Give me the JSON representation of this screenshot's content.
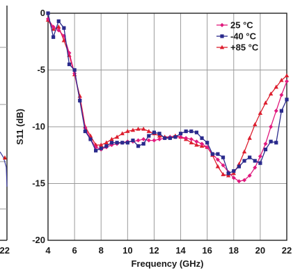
{
  "chart_data": {
    "type": "line",
    "xlabel": "Frequency (GHz)",
    "ylabel": "S11 (dB)",
    "xlim": [
      4,
      22
    ],
    "ylim": [
      -20,
      0
    ],
    "xticks": [
      "4",
      "6",
      "8",
      "10",
      "12",
      "14",
      "16",
      "18",
      "20",
      "22"
    ],
    "yticks": [
      "0",
      "-5",
      "-10",
      "-15",
      "-20"
    ],
    "grid": true,
    "legend_placement": "top-right",
    "left_partial_panel": {
      "tick_label": "22",
      "line_color": "#3a3aa0",
      "marker_color": "#cc1a1a"
    },
    "series": [
      {
        "name": "25 °C",
        "color": "#e0197d",
        "marker": "diamond",
        "x": [
          4,
          4.4,
          4.8,
          5.2,
          5.6,
          6.0,
          6.4,
          6.8,
          7.2,
          7.6,
          8.0,
          8.4,
          8.8,
          9.2,
          9.6,
          10.0,
          10.4,
          10.8,
          11.2,
          11.6,
          12.0,
          12.4,
          12.8,
          13.2,
          13.6,
          14.0,
          14.4,
          14.8,
          15.2,
          15.6,
          16.0,
          16.4,
          16.8,
          17.2,
          17.6,
          18.0,
          18.4,
          18.8,
          19.2,
          19.6,
          20.0,
          20.4,
          20.8,
          21.2,
          21.6,
          22.0
        ],
        "values": [
          -0.5,
          -1.2,
          -1.5,
          -2.0,
          -3.5,
          -5.3,
          -7.6,
          -10.1,
          -11.1,
          -11.8,
          -12.0,
          -11.8,
          -11.6,
          -11.5,
          -11.4,
          -11.3,
          -11.3,
          -11.2,
          -11.1,
          -11.2,
          -11.2,
          -11.1,
          -11.0,
          -10.9,
          -10.9,
          -10.9,
          -11.0,
          -11.1,
          -11.3,
          -11.5,
          -11.8,
          -12.4,
          -12.9,
          -13.4,
          -14.0,
          -14.5,
          -14.8,
          -14.7,
          -14.3,
          -13.6,
          -12.6,
          -11.5,
          -10.0,
          -8.6,
          -7.2,
          -6.0
        ]
      },
      {
        "name": "-40 °C",
        "color": "#2a2a8c",
        "marker": "square",
        "x": [
          4,
          4.4,
          4.8,
          5.2,
          5.6,
          6.0,
          6.4,
          6.8,
          7.2,
          7.6,
          8.0,
          8.4,
          8.8,
          9.2,
          9.6,
          10.0,
          10.4,
          10.8,
          11.2,
          11.6,
          12.0,
          12.4,
          12.8,
          13.2,
          13.6,
          14.0,
          14.4,
          14.8,
          15.2,
          15.6,
          16.0,
          16.4,
          16.8,
          17.2,
          17.6,
          18.0,
          18.4,
          18.8,
          19.2,
          19.6,
          20.0,
          20.4,
          20.8,
          21.2,
          21.6,
          22.0
        ],
        "values": [
          0.0,
          -2.1,
          -0.7,
          -1.3,
          -4.5,
          -5.0,
          -7.7,
          -10.4,
          -11.1,
          -12.1,
          -11.9,
          -11.7,
          -11.4,
          -11.4,
          -11.4,
          -11.4,
          -11.2,
          -11.7,
          -11.5,
          -10.8,
          -10.5,
          -10.6,
          -11.0,
          -11.0,
          -10.9,
          -10.6,
          -10.4,
          -10.4,
          -10.5,
          -11.0,
          -11.4,
          -12.4,
          -12.4,
          -12.7,
          -14.1,
          -13.9,
          -13.5,
          -13.0,
          -12.7,
          -13.0,
          -13.2,
          -12.0,
          -11.3,
          -11.4,
          -8.6,
          -7.6
        ]
      },
      {
        "name": "+85 °C",
        "color": "#dd1e2e",
        "marker": "triangle",
        "x": [
          4,
          4.4,
          4.8,
          5.2,
          5.6,
          6.0,
          6.4,
          6.8,
          7.2,
          7.6,
          8.0,
          8.4,
          8.8,
          9.2,
          9.6,
          10.0,
          10.4,
          10.8,
          11.2,
          11.6,
          12.0,
          12.4,
          12.8,
          13.2,
          13.6,
          14.0,
          14.4,
          14.8,
          15.2,
          15.6,
          16.0,
          16.4,
          16.8,
          17.2,
          17.6,
          18.0,
          18.4,
          18.8,
          19.2,
          19.6,
          20.0,
          20.4,
          20.8,
          21.2,
          21.6,
          22.0
        ],
        "values": [
          -0.6,
          -1.4,
          -1.2,
          -2.4,
          -3.7,
          -5.4,
          -7.3,
          -10.0,
          -10.8,
          -11.6,
          -11.6,
          -11.4,
          -11.1,
          -10.9,
          -10.6,
          -10.4,
          -10.3,
          -10.2,
          -10.2,
          -10.4,
          -10.6,
          -10.8,
          -10.9,
          -10.9,
          -10.8,
          -10.9,
          -11.1,
          -11.4,
          -11.6,
          -11.7,
          -11.8,
          -12.5,
          -13.5,
          -14.2,
          -14.3,
          -14.1,
          -13.3,
          -12.2,
          -11.0,
          -9.8,
          -8.8,
          -7.9,
          -7.1,
          -6.5,
          -5.9,
          -5.5
        ]
      }
    ]
  }
}
